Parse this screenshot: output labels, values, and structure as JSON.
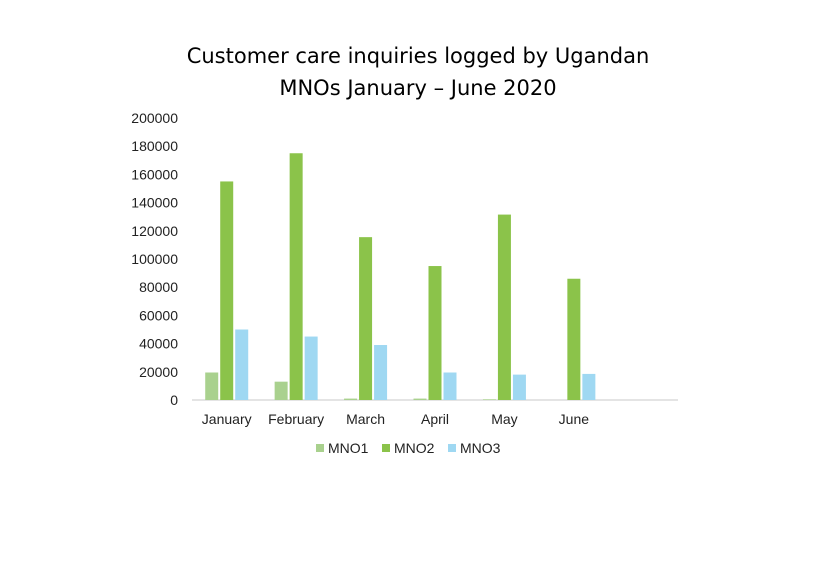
{
  "chart_data": {
    "type": "bar",
    "title_lines": [
      "Customer care inquiries logged by Ugandan",
      "MNOs January – June 2020"
    ],
    "categories": [
      "January",
      "February",
      "March",
      "April",
      "May",
      "June"
    ],
    "series": [
      {
        "name": "MNO1",
        "color": "#a9d18e",
        "values": [
          19500,
          13000,
          1000,
          1000,
          500,
          0
        ]
      },
      {
        "name": "MNO2",
        "color": "#8bc34a",
        "values": [
          155000,
          175000,
          115500,
          95000,
          131500,
          86000
        ]
      },
      {
        "name": "MNO3",
        "color": "#9fd8f2",
        "values": [
          50000,
          45000,
          39000,
          19500,
          18000,
          18500
        ]
      }
    ],
    "ylim": [
      0,
      200000
    ],
    "yticks": [
      "200000",
      "180000",
      "160000",
      "140000",
      "120000",
      "100000",
      "80000",
      "60000",
      "40000",
      "20000",
      "0"
    ],
    "grid": false,
    "legend_position": "bottom"
  }
}
